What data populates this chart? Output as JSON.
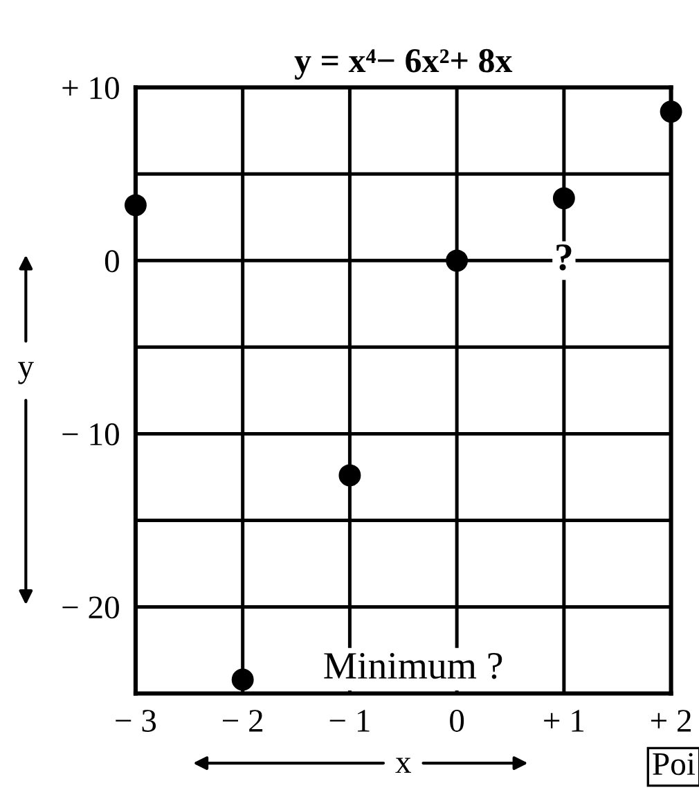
{
  "chart_data": {
    "type": "scatter",
    "title": "y = x⁴− 6x²+ 8x",
    "xlabel": "x",
    "ylabel": "y",
    "x": [
      -3,
      -2,
      -1,
      0,
      1,
      2
    ],
    "series": [
      {
        "color": "#000000",
        "values": [
          3.2,
          -24.2,
          -12.4,
          0,
          3.6,
          8.6
        ]
      }
    ],
    "xlim": [
      -3,
      2
    ],
    "ylim": [
      -25,
      10
    ],
    "xticks": [
      {
        "value": -3,
        "label": "− 3"
      },
      {
        "value": -2,
        "label": "− 2"
      },
      {
        "value": -1,
        "label": "− 1"
      },
      0,
      {
        "value": 1,
        "label": "+ 1"
      },
      {
        "value": 2,
        "label": "+ 2"
      }
    ],
    "yticks": [
      {
        "value": -25,
        "label": null
      },
      {
        "value": -20,
        "label": "− 20"
      },
      {
        "value": -15,
        "label": null
      },
      {
        "value": -10,
        "label": "− 10"
      },
      {
        "value": -5,
        "label": null
      },
      0,
      {
        "value": 5,
        "label": null
      },
      {
        "value": 10,
        "label": "+ 10"
      }
    ],
    "grid": true,
    "marker": "circle",
    "annotations": [
      "Minimum ?",
      {
        "text": "?",
        "x": 1,
        "y": 0
      },
      "Poi"
    ]
  }
}
